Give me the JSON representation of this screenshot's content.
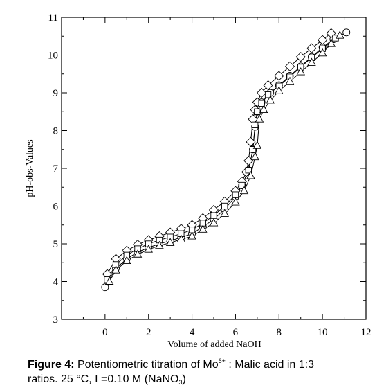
{
  "chart_data": {
    "type": "scatter",
    "xlabel": "Volume of added NaOH",
    "ylabel": "pH-obs-Values",
    "xlim": [
      -2,
      12
    ],
    "ylim": [
      3,
      11
    ],
    "x_ticks": [
      0,
      2,
      4,
      6,
      8,
      10,
      12
    ],
    "y_ticks": [
      3,
      4,
      5,
      6,
      7,
      8,
      9,
      10,
      11
    ],
    "grid": false,
    "legend": "none",
    "series": [
      {
        "marker": "circle",
        "x": [
          0.0,
          0.5,
          1.0,
          1.5,
          2.0,
          2.5,
          3.0,
          3.5,
          4.0,
          4.5,
          5.0,
          5.5,
          6.0,
          6.3,
          6.6,
          6.8,
          6.9,
          7.0,
          7.2,
          7.6,
          8.0,
          8.5,
          9.0,
          9.5,
          10.0,
          10.5,
          11.1
        ],
        "y": [
          3.85,
          4.35,
          4.6,
          4.78,
          4.9,
          5.0,
          5.08,
          5.17,
          5.27,
          5.45,
          5.65,
          5.92,
          6.25,
          6.55,
          6.95,
          7.5,
          8.1,
          8.5,
          8.75,
          9.0,
          9.2,
          9.45,
          9.7,
          9.95,
          10.2,
          10.42,
          10.6
        ]
      },
      {
        "marker": "diamond",
        "x": [
          0.1,
          0.5,
          1.0,
          1.5,
          2.0,
          2.5,
          3.0,
          3.5,
          4.0,
          4.5,
          5.0,
          5.5,
          6.0,
          6.3,
          6.5,
          6.6,
          6.7,
          6.8,
          6.9,
          7.0,
          7.2,
          7.5,
          8.0,
          8.5,
          9.0,
          9.5,
          10.0,
          10.4
        ],
        "y": [
          4.2,
          4.6,
          4.82,
          4.98,
          5.1,
          5.2,
          5.3,
          5.4,
          5.5,
          5.68,
          5.9,
          6.12,
          6.4,
          6.65,
          6.9,
          7.2,
          7.7,
          8.3,
          8.55,
          8.75,
          9.0,
          9.2,
          9.45,
          9.7,
          9.95,
          10.18,
          10.4,
          10.58
        ]
      },
      {
        "marker": "square",
        "x": [
          0.1,
          0.5,
          1.0,
          1.5,
          2.0,
          2.5,
          3.0,
          3.5,
          4.0,
          4.5,
          5.0,
          5.5,
          6.0,
          6.3,
          6.6,
          6.8,
          6.9,
          7.0,
          7.2,
          7.5,
          8.0,
          8.5,
          9.0,
          9.5,
          10.0,
          10.6
        ],
        "y": [
          4.05,
          4.45,
          4.7,
          4.87,
          5.0,
          5.1,
          5.18,
          5.27,
          5.37,
          5.55,
          5.75,
          6.0,
          6.3,
          6.55,
          6.95,
          7.5,
          8.15,
          8.5,
          8.72,
          8.95,
          9.18,
          9.42,
          9.68,
          9.93,
          10.17,
          10.45
        ]
      },
      {
        "marker": "triangle",
        "x": [
          0.2,
          0.5,
          1.0,
          1.5,
          2.0,
          2.5,
          3.0,
          3.5,
          4.0,
          4.5,
          5.0,
          5.5,
          6.0,
          6.4,
          6.7,
          6.9,
          7.0,
          7.1,
          7.3,
          7.6,
          8.0,
          8.5,
          9.0,
          9.5,
          10.0,
          10.4,
          10.8
        ],
        "y": [
          4.0,
          4.3,
          4.55,
          4.72,
          4.85,
          4.95,
          5.03,
          5.12,
          5.2,
          5.38,
          5.55,
          5.8,
          6.1,
          6.4,
          6.8,
          7.3,
          7.6,
          8.3,
          8.55,
          8.8,
          9.05,
          9.3,
          9.55,
          9.8,
          10.05,
          10.3,
          10.52
        ]
      }
    ]
  },
  "caption": {
    "label": "Figure 4:",
    "text_1": " Potentiometric titration of Mo",
    "superscript": "6+",
    "text_2": " : Malic acid in 1:3",
    "text_3": "ratios. 25 °C, I =0.10 M (NaNO",
    "subscript": "3",
    "text_4": ")"
  }
}
